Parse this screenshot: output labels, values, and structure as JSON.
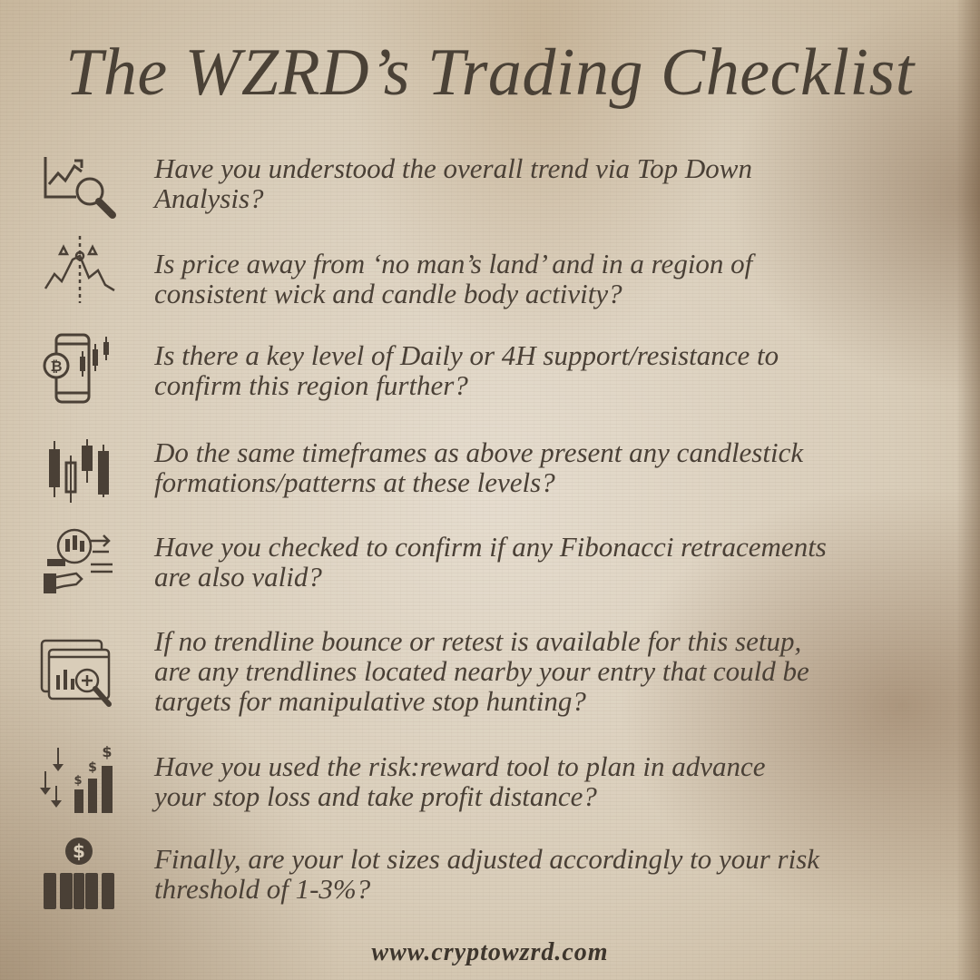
{
  "title": "The WZRD’s Trading Checklist",
  "items": [
    {
      "icon": "trend-analysis-icon",
      "text": "Have you understood the overall trend via Top Down\nAnalysis?"
    },
    {
      "icon": "price-chart-icon",
      "text": "Is price away from ‘no man’s land’ and in a region of\nconsistent wick and candle body activity?"
    },
    {
      "icon": "mobile-bitcoin-chart-icon",
      "text": "Is there a key level of Daily or 4H support/resistance to\nconfirm this region further?"
    },
    {
      "icon": "candlestick-icon",
      "text": "Do the same timeframes as above present any candlestick\nformations/patterns at these levels?"
    },
    {
      "icon": "trading-analysis-icon",
      "text": "Have you checked to confirm if any Fibonacci retracements\nare also valid?"
    },
    {
      "icon": "window-magnifier-icon",
      "text": "If no trendline bounce or retest is available for this setup,\nare any trendlines located nearby your entry that could be\ntargets for manipulative stop hunting?"
    },
    {
      "icon": "risk-reward-icon",
      "text": "Have you used the risk:reward tool to plan in advance\nyour stop loss and take profit distance?"
    },
    {
      "icon": "lot-size-icon",
      "text": "Finally,  are your lot sizes adjusted accordingly to your risk\nthreshold of 1-3%?"
    }
  ],
  "footer": "www.cryptowzrd.com",
  "colors": {
    "ink": "#4a4036",
    "paper": "#ddd2c0"
  }
}
